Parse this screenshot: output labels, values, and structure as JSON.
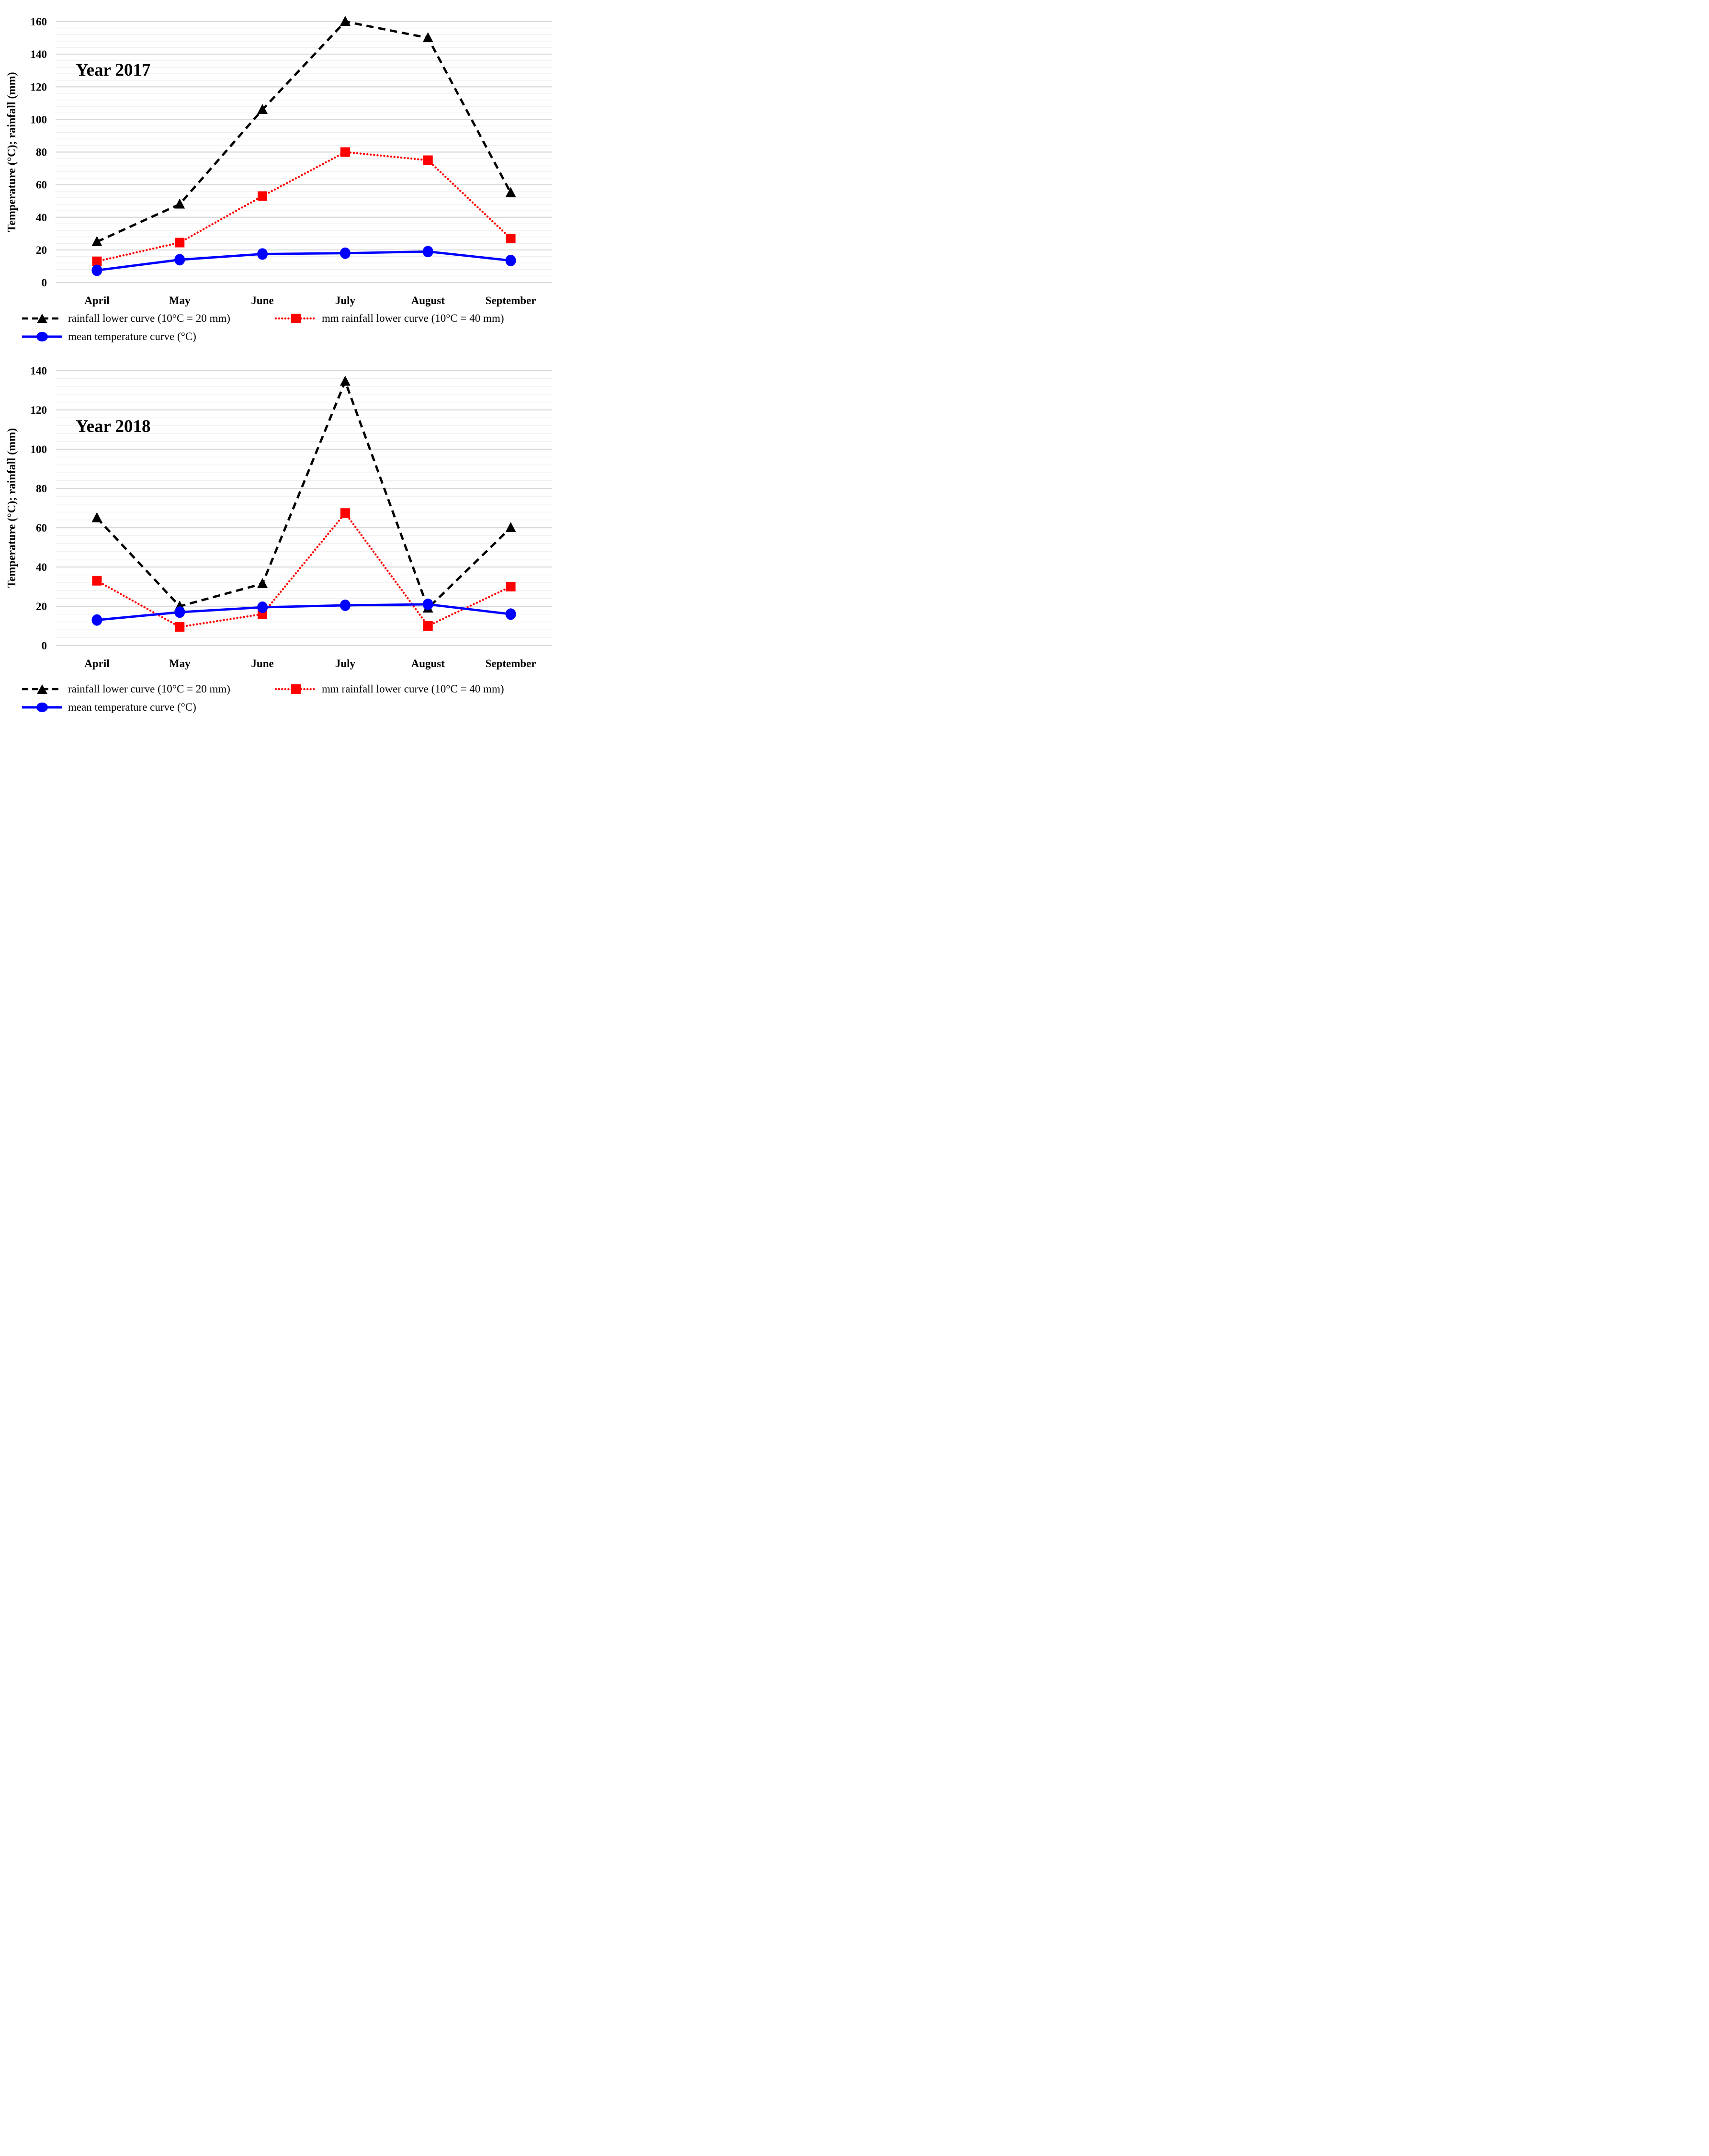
{
  "page": {
    "background_color": "#FFFFFF"
  },
  "chart_data": [
    {
      "type": "line",
      "title": "Year 2017",
      "ylabel": "Temperature (°C); rainfall (mm)",
      "xlabel": "",
      "ylim": [
        0,
        160
      ],
      "y_major_unit": 20,
      "y_minor_unit": 4,
      "yticks": [
        0,
        20,
        40,
        60,
        80,
        100,
        120,
        140,
        160
      ],
      "categories": [
        "April",
        "May",
        "June",
        "July",
        "August",
        "September"
      ],
      "grid": {
        "major_color": "#D9D9D9",
        "minor_color": "#EFEFEF",
        "vertical": false
      },
      "legend_position": "bottom",
      "series": [
        {
          "name": "rainfall lower curve (10°C = 20 mm)",
          "color": "#000000",
          "line_style": "dashed",
          "marker": "triangle",
          "values": [
            25,
            48,
            106,
            160,
            150,
            55
          ]
        },
        {
          "name": "mm rainfall lower curve (10°C = 40 mm)",
          "color": "#FF0000",
          "line_style": "dotted",
          "marker": "square",
          "values": [
            13,
            24.5,
            53,
            80,
            75,
            27
          ]
        },
        {
          "name": "mean temperature curve (°C)",
          "color": "#0000FF",
          "line_style": "solid",
          "marker": "circle",
          "values": [
            7.5,
            14,
            17.5,
            18,
            19,
            13.5
          ]
        }
      ]
    },
    {
      "type": "line",
      "title": "Year 2018",
      "ylabel": "Temperature (°C); rainfall (mm)",
      "xlabel": "",
      "ylim": [
        0,
        140
      ],
      "y_major_unit": 20,
      "y_minor_unit": 4,
      "yticks": [
        0,
        20,
        40,
        60,
        80,
        100,
        120,
        140
      ],
      "categories": [
        "April",
        "May",
        "June",
        "July",
        "August",
        "September"
      ],
      "grid": {
        "major_color": "#D9D9D9",
        "minor_color": "#EFEFEF",
        "vertical": false
      },
      "legend_position": "bottom",
      "series": [
        {
          "name": "rainfall lower curve (10°C = 20 mm)",
          "color": "#000000",
          "line_style": "dashed",
          "marker": "triangle",
          "values": [
            65,
            20,
            31.5,
            134.5,
            19,
            60
          ]
        },
        {
          "name": "mm rainfall lower curve (10°C = 40 mm)",
          "color": "#FF0000",
          "line_style": "dotted",
          "marker": "square",
          "values": [
            33,
            9.5,
            16,
            67.5,
            10,
            30
          ]
        },
        {
          "name": "mean temperature curve (°C)",
          "color": "#0000FF",
          "line_style": "solid",
          "marker": "circle",
          "values": [
            13,
            17,
            19.5,
            20.5,
            21,
            16
          ]
        }
      ]
    }
  ]
}
